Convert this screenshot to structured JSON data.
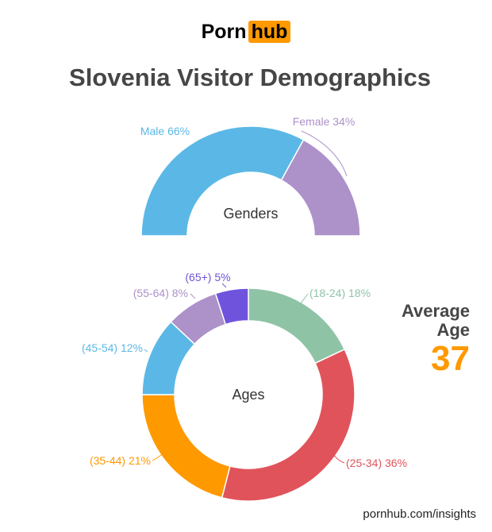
{
  "logo": {
    "part1": "Porn",
    "part2": "hub"
  },
  "title": "Slovenia Visitor Demographics",
  "average_age": {
    "label_line1": "Average",
    "label_line2": "Age",
    "value": "37"
  },
  "footer": "pornhub.com/insights",
  "colors": {
    "accent": "#ff9900",
    "text": "#464646"
  },
  "chart_data": [
    {
      "type": "pie",
      "variant": "half-donut",
      "center_label": "Genders",
      "categories": [
        "Male",
        "Female"
      ],
      "values": [
        66,
        34
      ],
      "labels": [
        "Male 66%",
        "Female 34%"
      ],
      "colors": [
        "#5bb8e6",
        "#ad91c9"
      ]
    },
    {
      "type": "pie",
      "variant": "donut",
      "center_label": "Ages",
      "categories": [
        "(18-24)",
        "(25-34)",
        "(35-44)",
        "(45-54)",
        "(55-64)",
        "(65+)"
      ],
      "values": [
        18,
        36,
        21,
        12,
        8,
        5
      ],
      "labels": [
        "(18-24) 18%",
        "(25-34) 36%",
        "(35-44) 21%",
        "(45-54) 12%",
        "(55-64) 8%",
        "(65+) 5%"
      ],
      "colors": [
        "#8fc3a6",
        "#e0535a",
        "#ff9900",
        "#5bb8e6",
        "#ad91c9",
        "#7053dd"
      ]
    }
  ]
}
